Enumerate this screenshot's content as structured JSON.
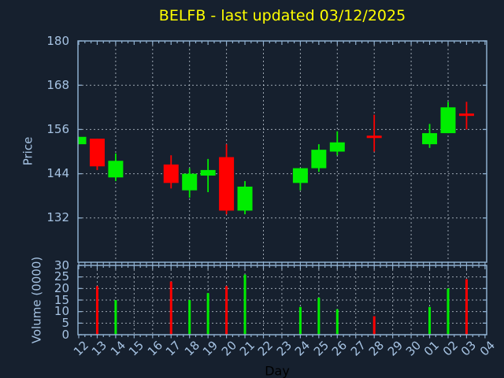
{
  "chart_data": {
    "type": "candlestick",
    "title": "BELFB - last updated 03/12/2025",
    "xlabel": "Day",
    "x_categories": [
      "12",
      "13",
      "14",
      "15",
      "16",
      "17",
      "18",
      "19",
      "20",
      "21",
      "22",
      "23",
      "24",
      "25",
      "26",
      "27",
      "28",
      "29",
      "30",
      "01",
      "02",
      "03",
      "04"
    ],
    "panels": [
      {
        "name": "price",
        "ylabel": "Price",
        "ylim": [
          120,
          180
        ],
        "yticks": [
          132,
          144,
          156,
          168,
          180
        ],
        "grid": "dotted",
        "vgrid_every_n_days": 2
      },
      {
        "name": "volume",
        "ylabel": "Volume (0000)",
        "ylim": [
          0,
          30
        ],
        "yticks": [
          0,
          5,
          10,
          15,
          20,
          25,
          30
        ],
        "grid": "dotted",
        "vgrid_every_n_days": 1
      }
    ],
    "ohlcv": [
      {
        "day": "12",
        "open": 152,
        "high": 154,
        "low": 152,
        "close": 154,
        "volume": null,
        "direction": "up"
      },
      {
        "day": "13",
        "open": 153.5,
        "high": 153.5,
        "low": 145,
        "close": 146,
        "volume": 21,
        "direction": "down"
      },
      {
        "day": "14",
        "open": 143,
        "high": 149.5,
        "low": 142,
        "close": 147.5,
        "volume": 15,
        "direction": "up"
      },
      {
        "day": "17",
        "open": 146.5,
        "high": 149,
        "low": 140,
        "close": 141.5,
        "volume": 23,
        "direction": "down"
      },
      {
        "day": "18",
        "open": 139.5,
        "high": 145.5,
        "low": 137.5,
        "close": 144,
        "volume": 15,
        "direction": "up"
      },
      {
        "day": "19",
        "open": 143.5,
        "high": 148,
        "low": 139,
        "close": 145,
        "volume": 18,
        "direction": "up"
      },
      {
        "day": "20",
        "open": 148.5,
        "high": 152,
        "low": 133,
        "close": 134,
        "volume": 21,
        "direction": "down"
      },
      {
        "day": "21",
        "open": 134,
        "high": 142,
        "low": 133,
        "close": 140.5,
        "volume": 26,
        "direction": "up"
      },
      {
        "day": "24",
        "open": 141.5,
        "high": 145.5,
        "low": 139.5,
        "close": 145.5,
        "volume": 12,
        "direction": "up"
      },
      {
        "day": "25",
        "open": 145.5,
        "high": 152,
        "low": 144.5,
        "close": 150.5,
        "volume": 16,
        "direction": "up"
      },
      {
        "day": "26",
        "open": 150,
        "high": 155.5,
        "low": 149,
        "close": 152.5,
        "volume": 11,
        "direction": "up"
      },
      {
        "day": "28",
        "open": 154,
        "high": 160,
        "low": 150,
        "close": 154,
        "volume": 8,
        "direction": "down"
      },
      {
        "day": "01",
        "open": 152,
        "high": 157.5,
        "low": 151,
        "close": 155,
        "volume": 12,
        "direction": "up"
      },
      {
        "day": "02",
        "open": 155,
        "high": 163.5,
        "low": 155,
        "close": 162,
        "volume": 20,
        "direction": "up"
      },
      {
        "day": "03",
        "open": 160,
        "high": 163.5,
        "low": 156,
        "close": 160,
        "volume": 24,
        "direction": "down"
      }
    ],
    "colors": {
      "background": "#16202e",
      "frame": "#8eafcf",
      "tick_label": "#a6c3e3",
      "grid": "#c8d2dc",
      "up": "#00ee00",
      "down": "#ff0000",
      "title": "#ffff00",
      "xlabel_text": "#000000"
    }
  }
}
